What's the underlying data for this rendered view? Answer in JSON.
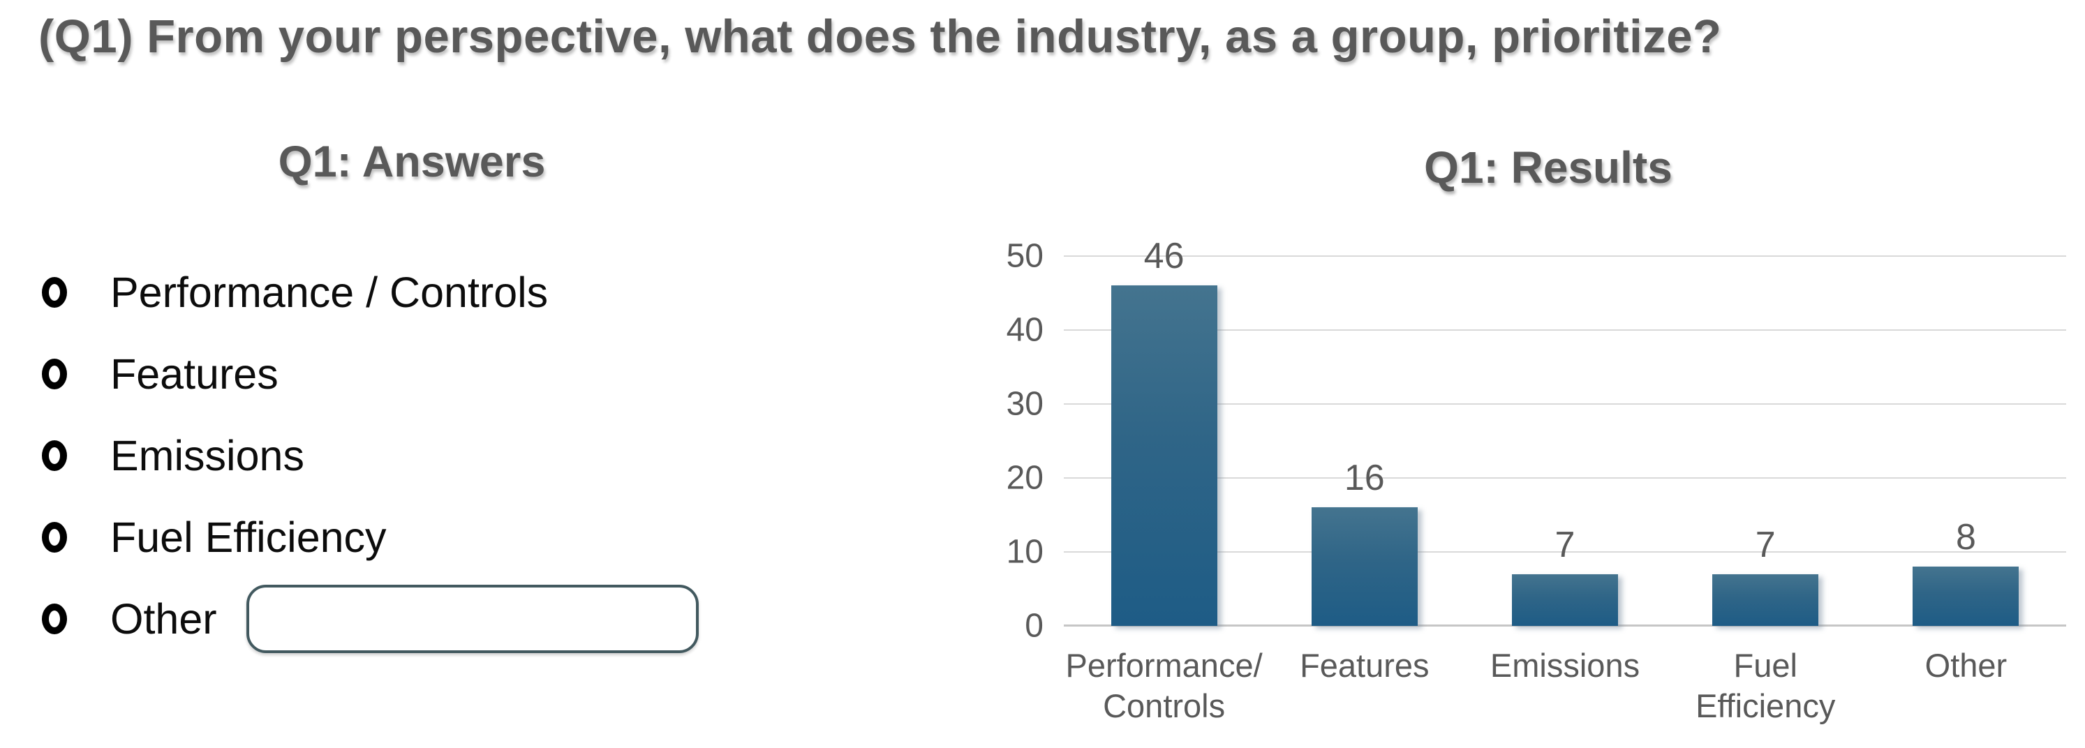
{
  "page": {
    "title": "(Q1) From your perspective, what does the industry, as a group, prioritize?"
  },
  "answers": {
    "heading": "Q1: Answers",
    "items": [
      {
        "label": "Performance / Controls"
      },
      {
        "label": "Features"
      },
      {
        "label": "Emissions"
      },
      {
        "label": "Fuel Efficiency"
      },
      {
        "label": "Other"
      }
    ],
    "other_input_value": ""
  },
  "chart_data": {
    "type": "bar",
    "title": "Q1: Results",
    "categories": [
      "Performance/\nControls",
      "Features",
      "Emissions",
      "Fuel\nEfficiency",
      "Other"
    ],
    "values": [
      46,
      16,
      7,
      7,
      8
    ],
    "xlabel": "",
    "ylabel": "",
    "ylim": [
      0,
      50
    ],
    "yticks": [
      0,
      10,
      20,
      30,
      40,
      50
    ],
    "grid": true,
    "legend": "none",
    "colors": {
      "bar_top": "#44748f",
      "bar_bottom": "#1e5c86",
      "text_gray": "#595959",
      "gridline": "#d9d9d9"
    }
  }
}
